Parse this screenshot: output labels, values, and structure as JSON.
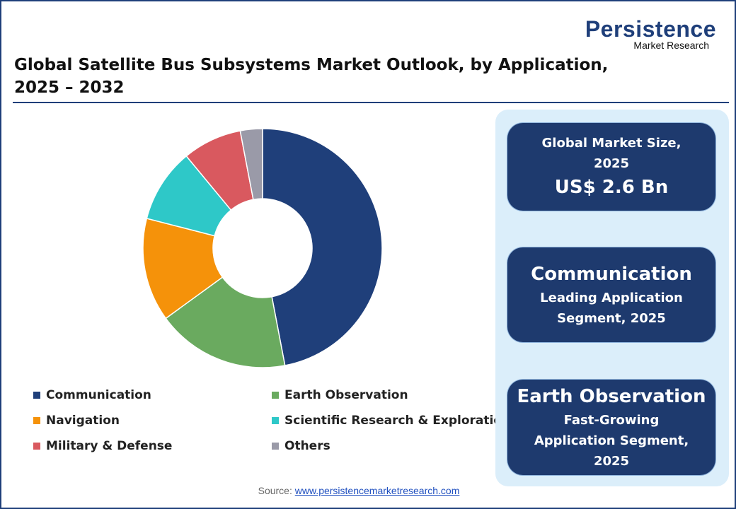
{
  "chart_data": {
    "type": "donut",
    "title": "Global Satellite Bus Subsystems Market Outlook, by Application, 2025 – 2032",
    "categories": [
      "Communication",
      "Earth Observation",
      "Navigation",
      "Scientific Research & Exploration",
      "Military & Defense",
      "Others"
    ],
    "values": [
      47,
      18,
      14,
      10,
      8,
      3
    ],
    "colors": [
      "#1f3f7a",
      "#6aaa5f",
      "#f5920a",
      "#2ec8c8",
      "#d9595f",
      "#9a9aa8"
    ]
  },
  "logo": {
    "name": "Persistence",
    "tagline": "Market Research"
  },
  "cards": [
    {
      "caption": "Global Market Size, 2025",
      "headline": "US$ 2.6 Bn"
    },
    {
      "headline": "Communication",
      "caption": "Leading Application Segment, 2025"
    },
    {
      "headline": "Earth Observation",
      "caption": "Fast-Growing Application Segment, 2025"
    }
  ],
  "source": {
    "label": "Source:",
    "url": "www.persistencemarketresearch.com"
  }
}
